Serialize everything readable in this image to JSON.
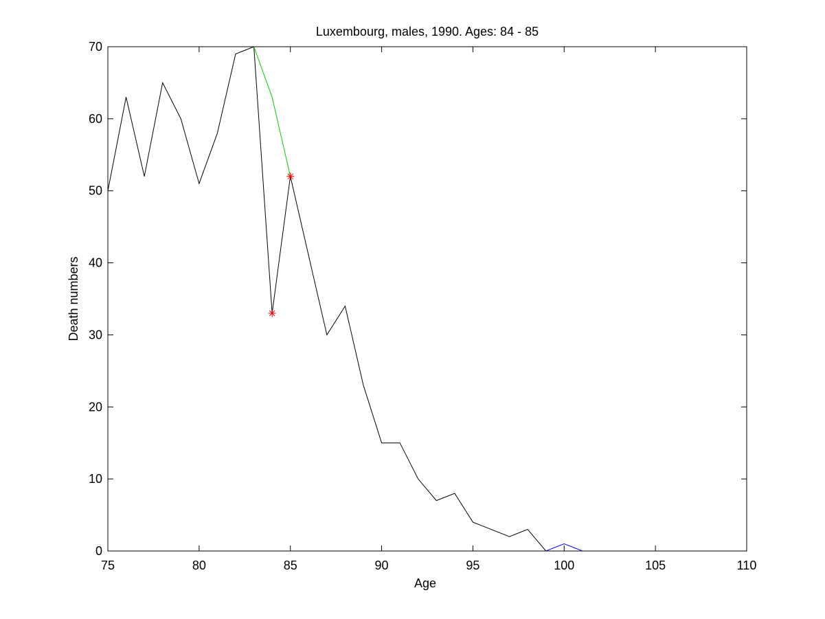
{
  "chart_data": {
    "type": "line",
    "title": "Luxembourg, males, 1990. Ages: 84 - 85",
    "xlabel": "Age",
    "ylabel": "Death numbers",
    "xlim": [
      75,
      110
    ],
    "ylim": [
      0,
      70
    ],
    "xticks": [
      75,
      80,
      85,
      90,
      95,
      100,
      105,
      110
    ],
    "yticks": [
      0,
      10,
      20,
      30,
      40,
      50,
      60,
      70
    ],
    "grid": false,
    "legend": "none",
    "series": [
      {
        "color": "#000000",
        "x": [
          75,
          76,
          77,
          78,
          79,
          80,
          81,
          82,
          83,
          84,
          85,
          86,
          87,
          88,
          89,
          90,
          91,
          92,
          93,
          94,
          95,
          96,
          97,
          98,
          99
        ],
        "y": [
          50,
          63,
          52,
          65,
          60,
          51,
          58,
          69,
          70,
          33,
          52,
          41,
          30,
          34,
          23,
          15,
          15,
          10,
          7,
          8,
          4,
          3,
          2,
          3,
          0
        ]
      },
      {
        "color": "#00cc00",
        "x": [
          83,
          84,
          85
        ],
        "y": [
          70,
          63,
          52
        ]
      },
      {
        "color": "#0000ff",
        "x": [
          99,
          100,
          101
        ],
        "y": [
          0,
          1,
          0
        ]
      }
    ],
    "markers": {
      "color": "#ff0000",
      "symbol": "asterisk",
      "x": [
        84,
        85
      ],
      "y": [
        33,
        52
      ]
    }
  }
}
